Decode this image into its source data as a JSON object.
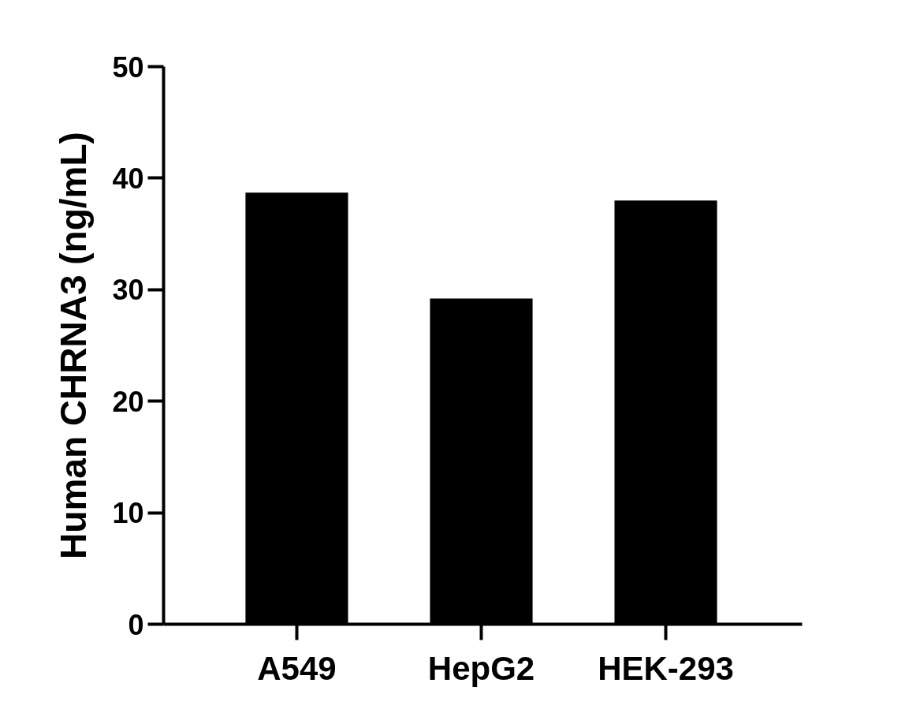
{
  "chart_data": {
    "type": "bar",
    "ylabel": "Human CHRNA3 (ng/mL)",
    "categories": [
      "A549",
      "HepG2",
      "HEK-293"
    ],
    "values": [
      38.7,
      29.2,
      38.0
    ],
    "color": "#000000",
    "ylim": [
      0,
      50
    ],
    "yticks": [
      0,
      10,
      20,
      30,
      40,
      50
    ],
    "grid": false
  }
}
